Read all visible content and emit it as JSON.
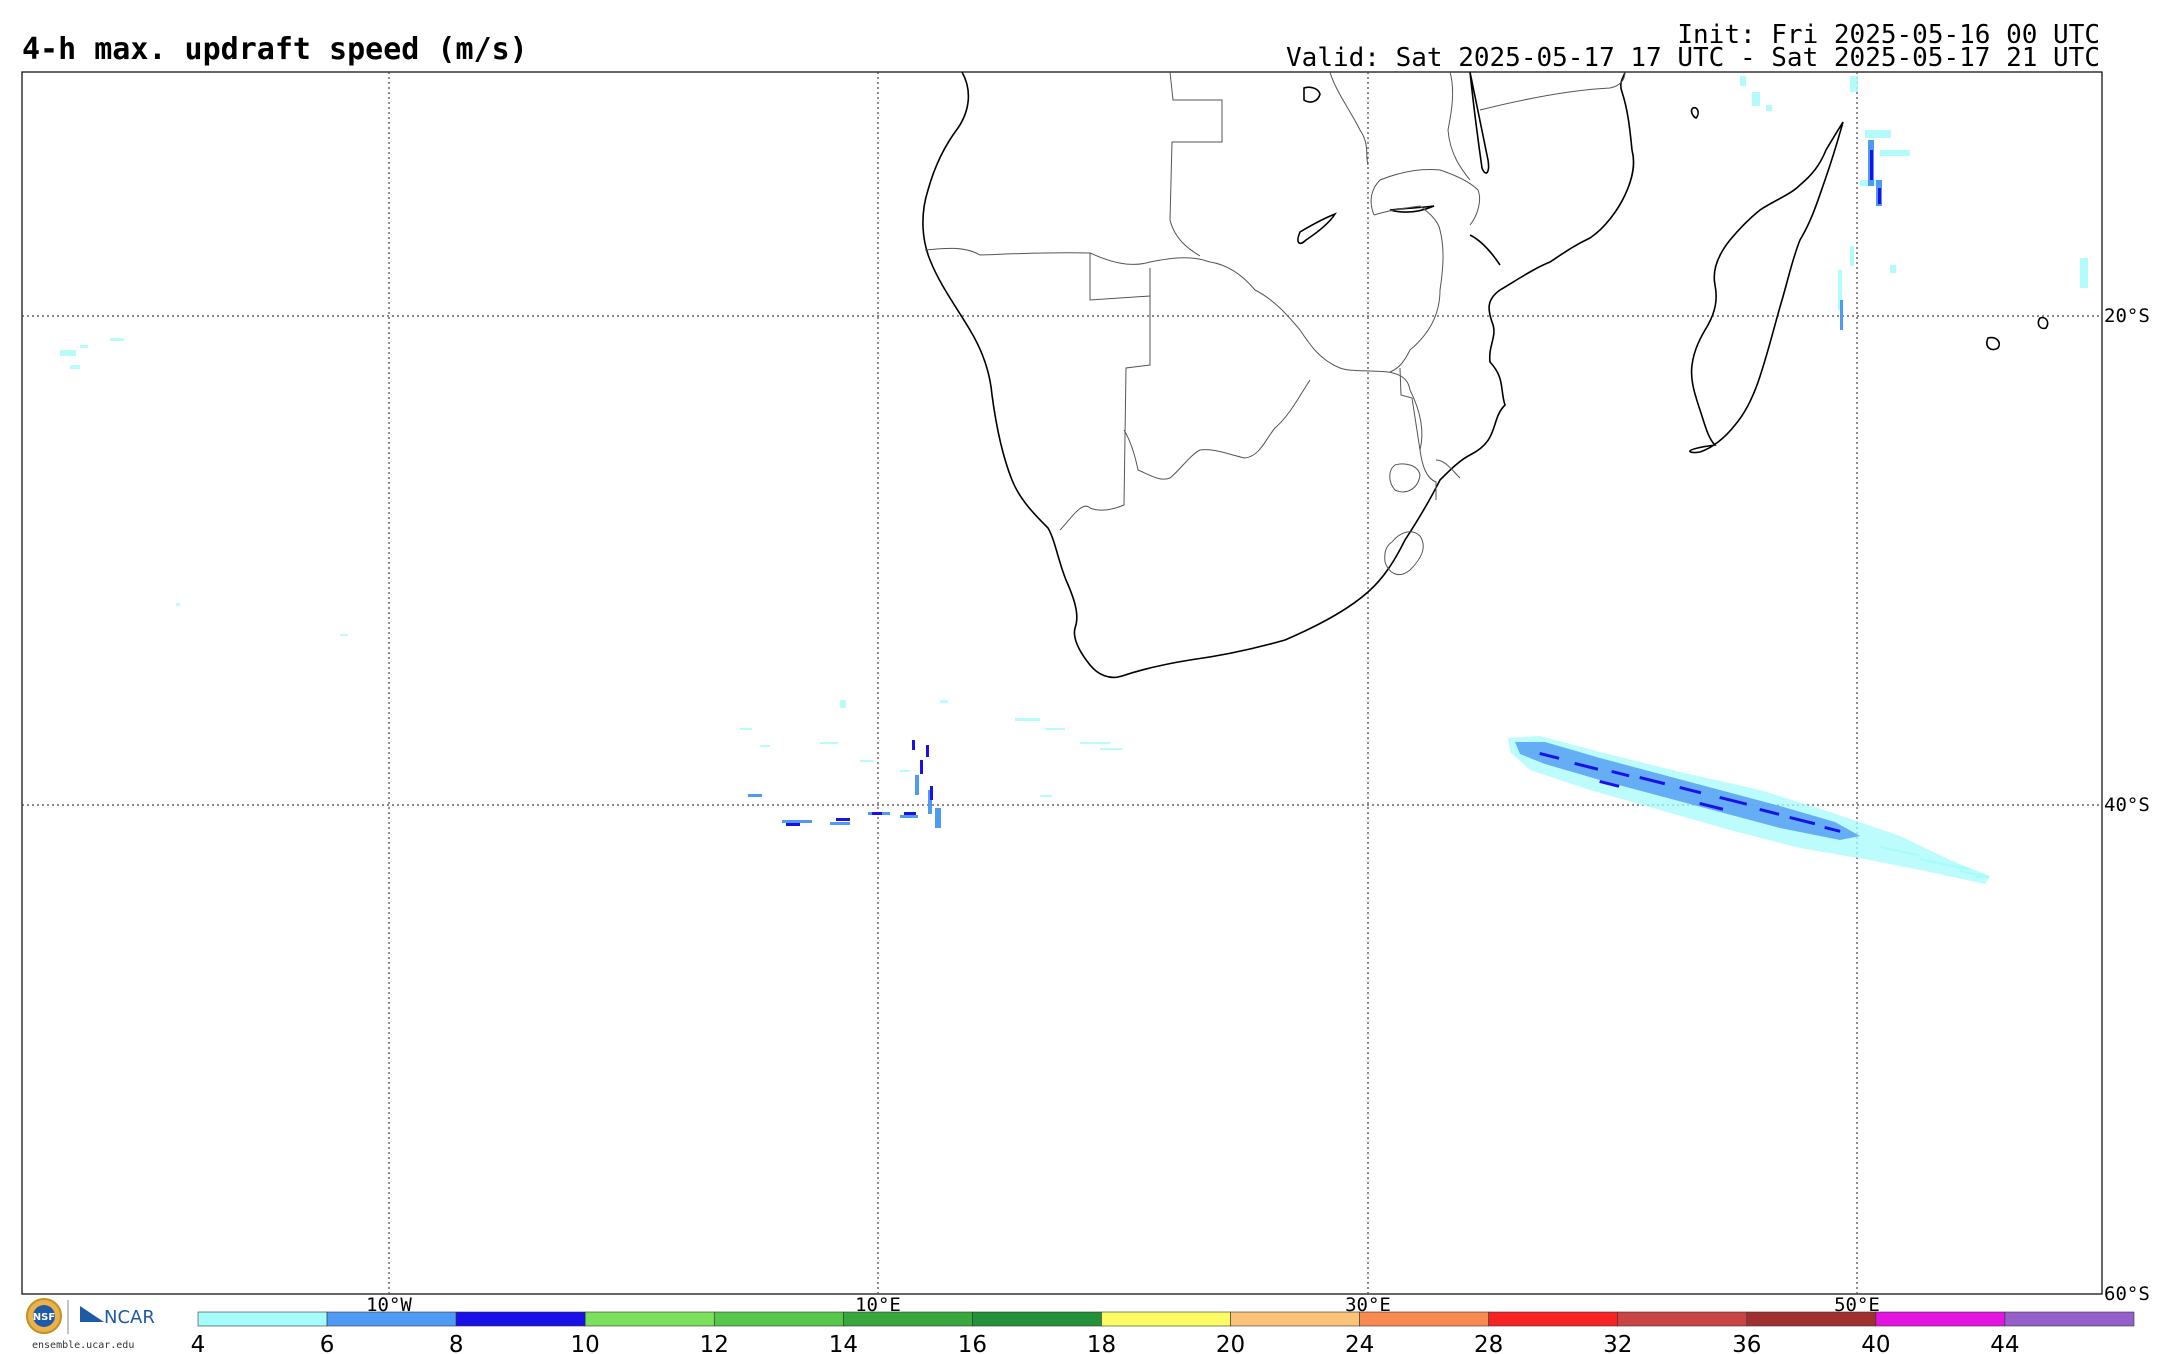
{
  "header": {
    "title": "4-h max. updraft speed (m/s)",
    "init": "Init: Fri 2025-05-16 00 UTC",
    "valid": "Valid: Sat 2025-05-17 17 UTC - Sat 2025-05-17 21 UTC"
  },
  "map": {
    "lat_labels": [
      "20°S",
      "40°S",
      "60°S"
    ],
    "lon_labels": [
      "10°W",
      "10°E",
      "30°E",
      "50°E"
    ],
    "lon_range": [
      -25,
      60
    ],
    "lat_range": [
      -10,
      -60
    ]
  },
  "colorbar": {
    "ticks": [
      "4",
      "6",
      "8",
      "10",
      "12",
      "14",
      "16",
      "18",
      "20",
      "24",
      "28",
      "32",
      "36",
      "40",
      "44"
    ],
    "colors": [
      "#a6fbfb",
      "#4f9af2",
      "#1a10e8",
      "#7be05c",
      "#55c74a",
      "#39a83c",
      "#22913a",
      "#fbfb66",
      "#fbc27a",
      "#f98a4f",
      "#f72222",
      "#c94444",
      "#a03030",
      "#e414e0",
      "#9660cc"
    ]
  },
  "footer": {
    "logo_site": "ensemble.ucar.edu",
    "logo_org": "NCAR",
    "logo_nsf": "NSF"
  }
}
